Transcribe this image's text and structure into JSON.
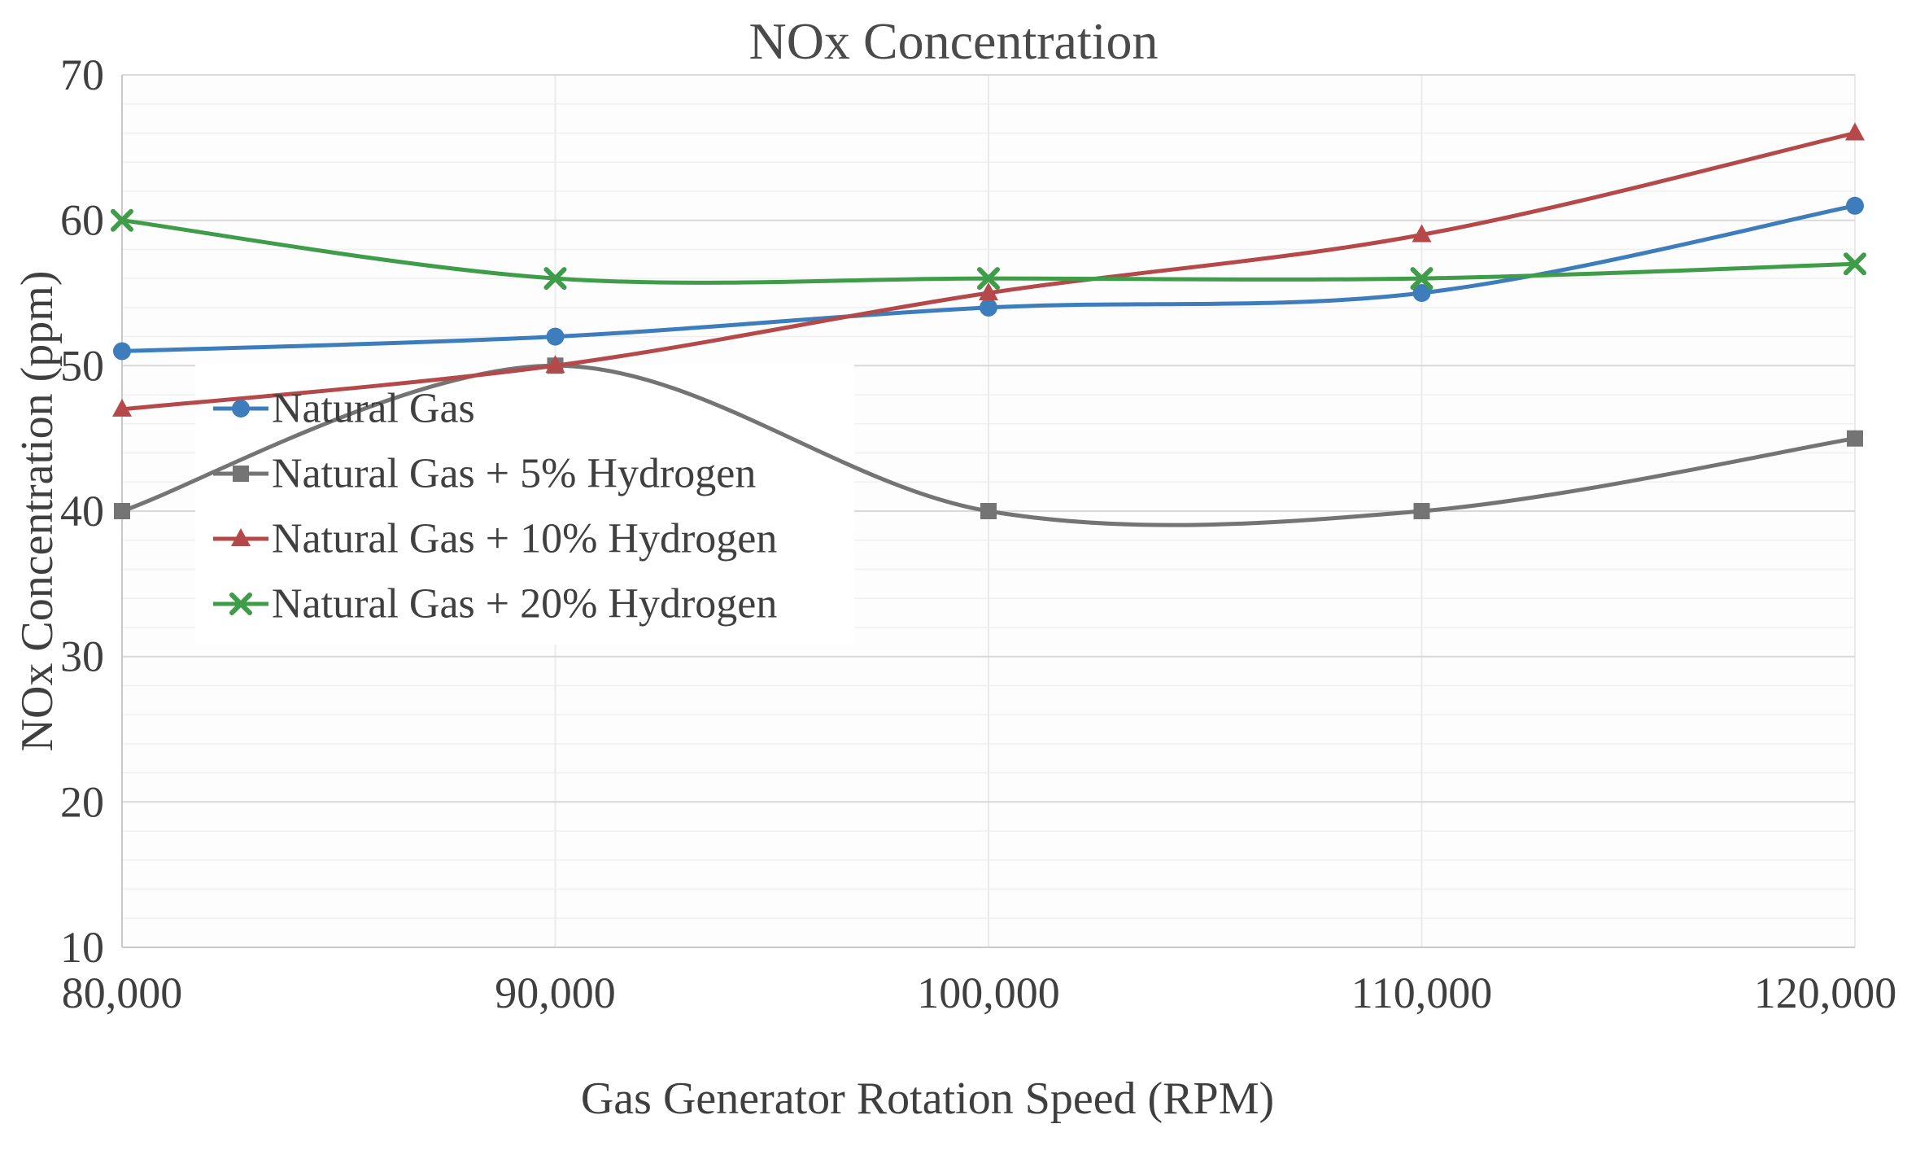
{
  "chart_data": {
    "type": "line",
    "title": "NOx Concentration",
    "xlabel": "Gas Generator Rotation Speed (RPM)",
    "ylabel": "NOx Concentration (ppm)",
    "x_tick_labels": [
      "80,000",
      "90,000",
      "100,000",
      "110,000",
      "120,000"
    ],
    "x_values": [
      80000,
      90000,
      100000,
      110000,
      120000
    ],
    "ylim": [
      10,
      70
    ],
    "y_ticks": [
      10,
      20,
      30,
      40,
      50,
      60,
      70
    ],
    "y_minor_step": 2,
    "grid": true,
    "smooth_lines": true,
    "legend_position": "inside-left",
    "series": [
      {
        "name": "Natural Gas",
        "color": "#3D7DBB",
        "marker": "circle",
        "values": [
          51,
          52,
          54,
          55,
          61
        ]
      },
      {
        "name": "Natural Gas + 5% Hydrogen",
        "color": "#747474",
        "marker": "square",
        "values": [
          40,
          50,
          40,
          40,
          45
        ]
      },
      {
        "name": "Natural Gas + 10% Hydrogen",
        "color": "#B5494A",
        "marker": "triangle",
        "values": [
          47,
          50,
          55,
          59,
          66
        ]
      },
      {
        "name": "Natural Gas + 20% Hydrogen",
        "color": "#3F9C49",
        "marker": "x",
        "values": [
          60,
          56,
          56,
          56,
          57
        ]
      }
    ],
    "style_colors": {
      "major_gridline": "#d9d9d9",
      "minor_gridline": "#f0f0f0",
      "vertical_gridline": "#eaeaea",
      "axis_line": "#c9c9c9",
      "tick_text": "#3f3f3f",
      "title_text": "#4a4a4a",
      "legend_background": "#ffffff"
    }
  }
}
